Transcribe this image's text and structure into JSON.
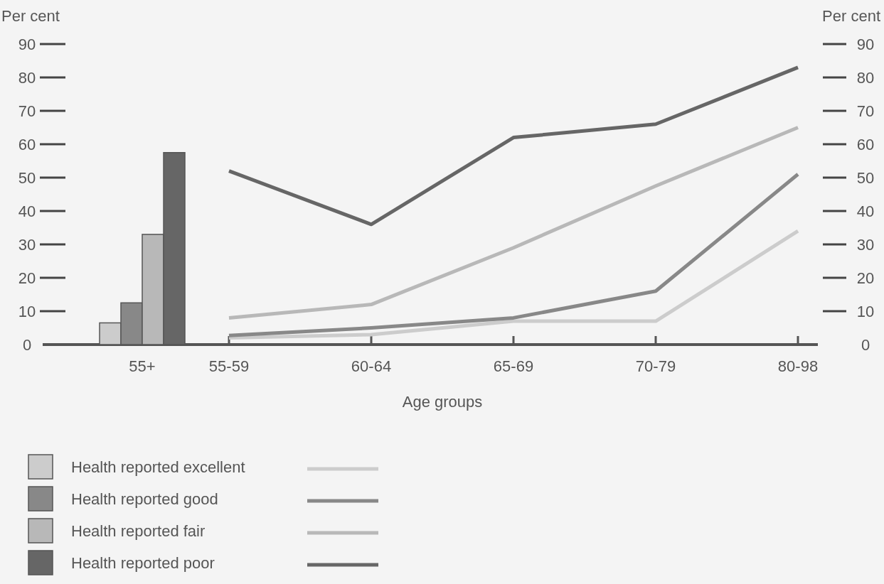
{
  "chart_data": {
    "type": "bar",
    "categories": [
      "55+",
      "55-59",
      "60-64",
      "65-69",
      "70-79",
      "80-98"
    ],
    "xlabel": "Age groups",
    "ylabel": "Per cent",
    "y2label": "Per cent",
    "ylim": [
      0,
      90
    ],
    "yticks": [
      0,
      10,
      20,
      30,
      40,
      50,
      60,
      70,
      80,
      90
    ],
    "y2lim": [
      0,
      90
    ],
    "y2ticks": [
      0,
      10,
      20,
      30,
      40,
      50,
      60,
      70,
      80,
      90
    ],
    "grid": false,
    "legend": "bottom left",
    "series": [
      {
        "name": "Health reported excellent",
        "color": "#cccccc",
        "values": [
          6.5,
          null,
          null,
          null,
          null,
          null
        ]
      },
      {
        "name": "Health reported good",
        "color": "#888888",
        "values": [
          12.5,
          null,
          null,
          null,
          null,
          null
        ]
      },
      {
        "name": "Health reported fair",
        "color": "#b8b8b8",
        "values": [
          33,
          null,
          null,
          null,
          null,
          null
        ]
      },
      {
        "name": "Health reported poor",
        "color": "#666666",
        "values": [
          57.5,
          null,
          null,
          null,
          null,
          null
        ]
      },
      {
        "type": "line",
        "color": "#cccccc",
        "values": [
          null,
          2,
          3,
          7,
          7,
          34
        ]
      },
      {
        "type": "line",
        "color": "#888888",
        "values": [
          null,
          2.7,
          5,
          8,
          16,
          51
        ]
      },
      {
        "type": "line",
        "color": "#b8b8b8",
        "values": [
          null,
          8,
          12,
          29,
          47.5,
          65
        ]
      },
      {
        "type": "line",
        "color": "#666666",
        "values": [
          null,
          52,
          36,
          62,
          66,
          83
        ]
      }
    ]
  }
}
